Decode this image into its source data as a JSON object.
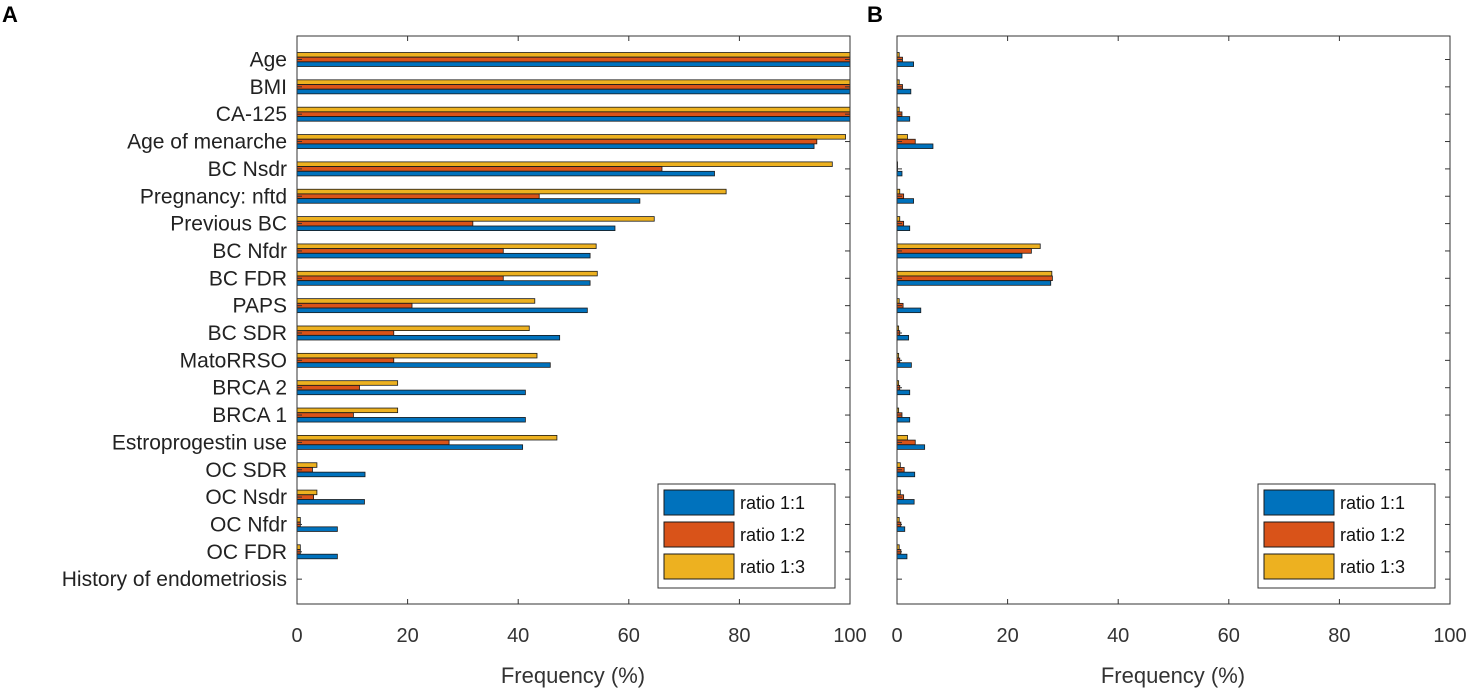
{
  "chart_data": [
    {
      "type": "bar",
      "orientation": "horizontal",
      "panel_label": "A",
      "xlabel": "Frequency (%)",
      "xlim": [
        0,
        100
      ],
      "xticks": [
        "0",
        "20",
        "40",
        "60",
        "80",
        "100"
      ],
      "categories": [
        "Age",
        "BMI",
        "CA-125",
        "Age of menarche",
        "BC Nsdr",
        "Pregnancy: nftd",
        "Previous BC",
        "BC Nfdr",
        "BC FDR",
        "PAPS",
        "BC SDR",
        "MatoRRSO",
        "BRCA 2",
        "BRCA 1",
        "Estroprogestin use",
        "OC SDR",
        "OC Nsdr",
        "OC Nfdr",
        "OC FDR",
        "History of endometriosis"
      ],
      "series": [
        {
          "name": "ratio 1:1",
          "color": "#0072BD",
          "values": [
            100,
            100,
            100,
            93.5,
            75.5,
            62,
            57.5,
            53,
            53,
            52.5,
            47.5,
            45.8,
            41.3,
            41.3,
            40.8,
            12.3,
            12.2,
            7.3,
            7.3,
            0
          ]
        },
        {
          "name": "ratio 1:2",
          "color": "#D95319",
          "values": [
            100,
            100,
            100,
            94,
            66,
            43.8,
            31.8,
            37.3,
            37.3,
            20.8,
            17.5,
            17.5,
            11.3,
            10.2,
            27.5,
            2.8,
            3.0,
            0.6,
            0.6,
            0
          ]
        },
        {
          "name": "ratio 1:3",
          "color": "#EDB120",
          "values": [
            100,
            100,
            100,
            99.2,
            96.8,
            77.6,
            64.6,
            54.1,
            54.3,
            43,
            42,
            43.4,
            18.2,
            18.2,
            47,
            3.6,
            3.6,
            0.6,
            0.6,
            0
          ]
        }
      ],
      "legend": {
        "position": "bottom-right",
        "entries": [
          "ratio 1:1",
          "ratio 1:2",
          "ratio 1:3"
        ]
      }
    },
    {
      "type": "bar",
      "orientation": "horizontal",
      "panel_label": "B",
      "xlabel": "Frequency (%)",
      "xlim": [
        0,
        100
      ],
      "xticks": [
        "0",
        "20",
        "40",
        "60",
        "80",
        "100"
      ],
      "categories": [
        "Age",
        "BMI",
        "CA-125",
        "Age of menarche",
        "BC Nsdr",
        "Pregnancy: nftd",
        "Previous BC",
        "BC Nfdr",
        "BC FDR",
        "PAPS",
        "BC SDR",
        "MatoRRSO",
        "BRCA 2",
        "BRCA 1",
        "Estroprogestin use",
        "OC SDR",
        "OC Nsdr",
        "OC Nfdr",
        "OC FDR",
        "History of endometriosis"
      ],
      "series": [
        {
          "name": "ratio 1:1",
          "color": "#0072BD",
          "values": [
            3.0,
            2.5,
            2.3,
            6.5,
            0.9,
            3.0,
            2.3,
            22.6,
            27.8,
            4.3,
            2.1,
            2.6,
            2.3,
            2.3,
            5.0,
            3.2,
            3.1,
            1.4,
            1.8,
            0
          ]
        },
        {
          "name": "ratio 1:2",
          "color": "#D95319",
          "values": [
            1.0,
            1.0,
            0.9,
            3.3,
            0.1,
            1.2,
            1.2,
            24.3,
            28.1,
            1.1,
            0.5,
            0.5,
            0.5,
            0.9,
            3.3,
            1.3,
            1.2,
            0.7,
            0.7,
            0
          ]
        },
        {
          "name": "ratio 1:3",
          "color": "#EDB120",
          "values": [
            0.4,
            0.4,
            0.4,
            1.9,
            0.1,
            0.5,
            0.5,
            25.9,
            28.0,
            0.4,
            0.3,
            0.3,
            0.3,
            0.3,
            1.9,
            0.6,
            0.6,
            0.4,
            0.4,
            0
          ]
        }
      ],
      "legend": {
        "position": "bottom-right",
        "entries": [
          "ratio 1:1",
          "ratio 1:2",
          "ratio 1:3"
        ]
      }
    }
  ]
}
